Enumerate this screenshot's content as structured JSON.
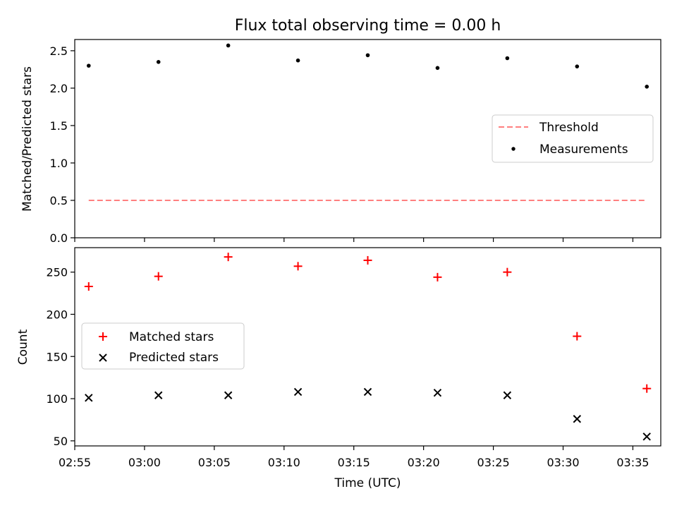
{
  "chart_data": [
    {
      "type": "scatter",
      "title": "Flux total observing time = 0.00 h",
      "xlabel": "",
      "ylabel": "Matched/Predicted stars",
      "ylim": [
        0,
        2.65
      ],
      "yticks": [
        "0.0",
        "0.5",
        "1.0",
        "1.5",
        "2.0",
        "2.5"
      ],
      "x": [
        "02:56",
        "03:01",
        "03:06",
        "03:11",
        "03:16",
        "03:21",
        "03:26",
        "03:31",
        "03:36"
      ],
      "series": [
        {
          "name": "Measurements",
          "kind": "dot",
          "color": "#000000",
          "values": [
            2.3,
            2.35,
            2.57,
            2.37,
            2.44,
            2.27,
            2.4,
            2.29,
            2.02
          ]
        },
        {
          "name": "Threshold",
          "kind": "dashed-line",
          "color": "#ff7f7f",
          "values": [
            0.5,
            0.5,
            0.5,
            0.5,
            0.5,
            0.5,
            0.5,
            0.5,
            0.5
          ]
        }
      ],
      "legend": "center-right",
      "grid": false
    },
    {
      "type": "scatter",
      "title": "",
      "xlabel": "Time (UTC)",
      "ylabel": "Count",
      "ylim": [
        44,
        279
      ],
      "yticks": [
        "50",
        "100",
        "150",
        "200",
        "250"
      ],
      "xticks": [
        "02:55",
        "03:00",
        "03:05",
        "03:10",
        "03:15",
        "03:20",
        "03:25",
        "03:30",
        "03:35"
      ],
      "x": [
        "02:56",
        "03:01",
        "03:06",
        "03:11",
        "03:16",
        "03:21",
        "03:26",
        "03:31",
        "03:36"
      ],
      "series": [
        {
          "name": "Matched stars",
          "marker": "plus",
          "color": "#ff0000",
          "values": [
            233,
            245,
            268,
            257,
            264,
            244,
            250,
            174,
            112
          ]
        },
        {
          "name": "Predicted stars",
          "marker": "x",
          "color": "#000000",
          "values": [
            101,
            104,
            104,
            108,
            108,
            107,
            104,
            76,
            55
          ]
        }
      ],
      "legend": "center-left",
      "grid": false
    }
  ]
}
